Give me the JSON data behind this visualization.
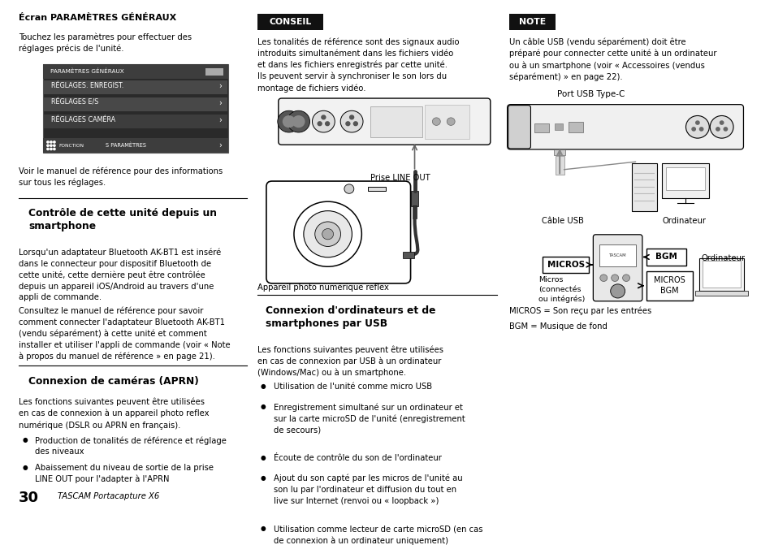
{
  "bg_color": "#ffffff",
  "page_width": 9.54,
  "page_height": 6.71,
  "sections": {
    "ecran_title": "Écran PARAMÈTRES GÉNÉRAUX",
    "ecran_body": "Touchez les paramètres pour effectuer des\nréglages précis de l'unité.",
    "ecran_footer": "Voir le manuel de référence pour des informations\nsur tous les réglages.",
    "controle_title": "Contrôle de cette unité depuis un\nsmartphone",
    "controle_body1": "Lorsqu'un adaptateur Bluetooth AK-BT1 est inséré\ndans le connecteur pour dispositif Bluetooth de\ncette unité, cette dernière peut être contrôlée\ndepuis un appareil iOS/Android au travers d'une\nappli de commande.",
    "controle_body2": "Consultez le manuel de référence pour savoir\ncomment connecter l'adaptateur Bluetooth AK-BT1\n(vendu séparément) à cette unité et comment\ninstaller et utiliser l'appli de commande (voir « Note\nà propos du manuel de référence » en page 21).",
    "cameras_title": "Connexion de caméras (APRN)",
    "cameras_body": "Les fonctions suivantes peuvent être utilisées\nen cas de connexion à un appareil photo reflex\nnumérique (DSLR ou APRN en français).",
    "cameras_bullet1": "Production de tonalités de référence et réglage\ndes niveaux",
    "cameras_bullet2": "Abaissement du niveau de sortie de la prise\nLINE OUT pour l'adapter à l'APRN",
    "conseil_label": "CONSEIL",
    "conseil_body": "Les tonalités de référence sont des signaux audio\nintroduits simultanément dans les fichiers vidéo\net dans les fichiers enregistrés par cette unité.\nIls peuvent servir à synchroniser le son lors du\nmontage de fichiers vidéo.",
    "prise_label": "Prise LINE OUT",
    "appareil_label": "Appareil photo numérique reflex",
    "usb_title": "Connexion d'ordinateurs et de\nsmartphones par USB",
    "usb_body": "Les fonctions suivantes peuvent être utilisées\nen cas de connexion par USB à un ordinateur\n(Windows/Mac) ou à un smartphone.",
    "usb_bullet1": "Utilisation de l'unité comme micro USB",
    "usb_bullet2": "Enregistrement simultané sur un ordinateur et\nsur la carte microSD de l'unité (enregistrement\nde secours)",
    "usb_bullet3": "Écoute de contrôle du son de l'ordinateur",
    "usb_bullet4": "Ajout du son capté par les micros de l'unité au\nson lu par l'ordinateur et diffusion du tout en\nlive sur Internet (renvoi ou « loopback »)",
    "usb_bullet5": "Utilisation comme lecteur de carte microSD (en cas\nde connexion à un ordinateur uniquement)",
    "note_label": "NOTE",
    "note_body": "Un câble USB (vendu séparément) doit être\npréparé pour connecter cette unité à un ordinateur\nou à un smartphone (voir « Accessoires (vendus\nséparément) » en page 22).",
    "port_label": "Port USB Type-C",
    "cable_label": "Câble USB",
    "ordinateur_label": "Ordinateur",
    "micros_label": "MICROS",
    "bgm_label": "BGM",
    "micros_label2": "Micros\n(connectés\nou intégrés)",
    "micros_bgm_label": "MICROS\nBGM",
    "ordinateur_label2": "Ordinateur",
    "micros_son": "MICROS = Son reçu par les entrées",
    "bgm_son": "BGM = Musique de fond",
    "page_num": "30",
    "page_product": "TASCAM Portacapture X6"
  }
}
